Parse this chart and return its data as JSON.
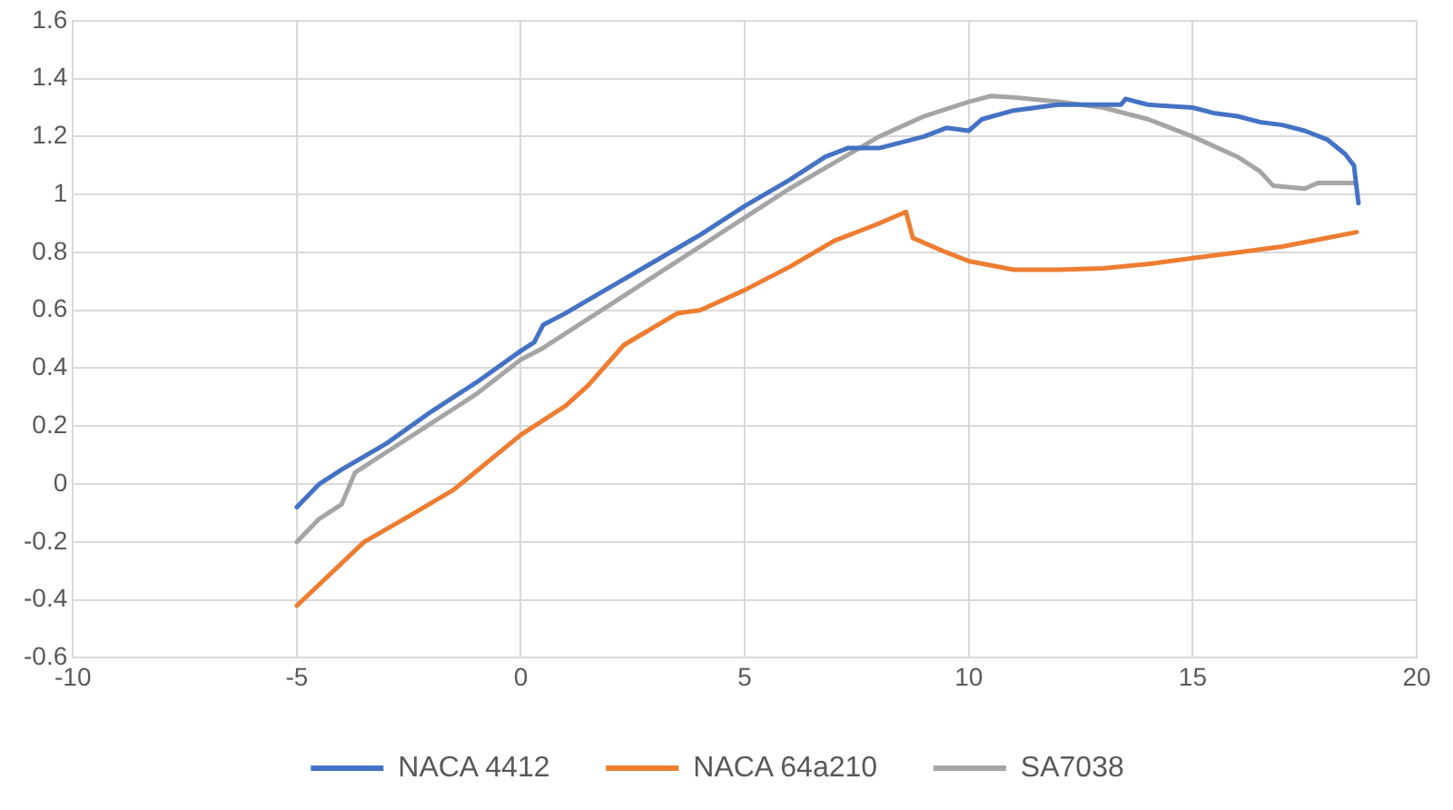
{
  "chart_data": {
    "type": "line",
    "xlim": [
      -10,
      20
    ],
    "xticks": [
      -10,
      -5,
      0,
      5,
      10,
      15,
      20
    ],
    "ylim": [
      -0.6,
      1.6
    ],
    "yticks": [
      -0.6,
      -0.4,
      -0.2,
      0,
      0.2,
      0.4,
      0.6,
      0.8,
      1,
      1.2,
      1.4,
      1.6
    ],
    "grid": true,
    "legend": "bottom",
    "marker": "none",
    "line_style": "solid",
    "series": [
      {
        "name": "NACA 4412",
        "color": "#4472c4",
        "x": [
          -5,
          -4.5,
          -4,
          -3,
          -2,
          -1,
          0,
          0.3,
          0.5,
          1,
          2,
          3,
          4,
          5,
          6,
          6.8,
          7.3,
          8,
          9,
          9.5,
          10,
          10.3,
          11,
          12,
          13,
          13.4,
          13.5,
          14,
          15,
          15.5,
          16,
          16.5,
          17,
          17.5,
          18,
          18.4,
          18.6,
          18.7
        ],
        "values": [
          -0.08,
          0,
          0.05,
          0.14,
          0.25,
          0.35,
          0.46,
          0.49,
          0.55,
          0.59,
          0.68,
          0.77,
          0.86,
          0.96,
          1.05,
          1.13,
          1.16,
          1.16,
          1.2,
          1.23,
          1.22,
          1.26,
          1.29,
          1.31,
          1.31,
          1.31,
          1.33,
          1.31,
          1.3,
          1.28,
          1.27,
          1.25,
          1.24,
          1.22,
          1.19,
          1.14,
          1.1,
          0.97
        ]
      },
      {
        "name": "NACA 64a210",
        "color": "#ed7d31",
        "x": [
          -5,
          -3.5,
          -2.6,
          -1.5,
          0,
          1,
          1.5,
          2.3,
          3.5,
          4,
          5,
          6,
          7,
          8,
          8.6,
          8.75,
          9.5,
          10,
          11,
          12,
          13,
          14,
          15,
          16,
          17,
          18,
          18.66
        ],
        "values": [
          -0.42,
          -0.2,
          -0.12,
          -0.02,
          0.17,
          0.27,
          0.34,
          0.48,
          0.59,
          0.6,
          0.67,
          0.75,
          0.84,
          0.9,
          0.94,
          0.85,
          0.8,
          0.77,
          0.74,
          0.74,
          0.745,
          0.76,
          0.78,
          0.8,
          0.82,
          0.85,
          0.87
        ]
      },
      {
        "name": "SA7038",
        "color": "#a5a5a5",
        "x": [
          -5,
          -4.5,
          -4,
          -3.7,
          -3,
          -2,
          -1,
          0,
          0.5,
          1,
          2,
          3,
          4,
          5,
          6,
          7,
          8,
          9,
          10,
          10.5,
          11,
          12,
          13,
          14,
          15,
          16,
          16.5,
          16.8,
          17.5,
          17.8,
          18.6
        ],
        "values": [
          -0.2,
          -0.12,
          -0.07,
          0.04,
          0.11,
          0.21,
          0.31,
          0.43,
          0.47,
          0.52,
          0.62,
          0.72,
          0.82,
          0.92,
          1.02,
          1.11,
          1.2,
          1.27,
          1.32,
          1.34,
          1.335,
          1.32,
          1.3,
          1.26,
          1.2,
          1.13,
          1.08,
          1.03,
          1.02,
          1.04,
          1.04
        ]
      }
    ]
  }
}
